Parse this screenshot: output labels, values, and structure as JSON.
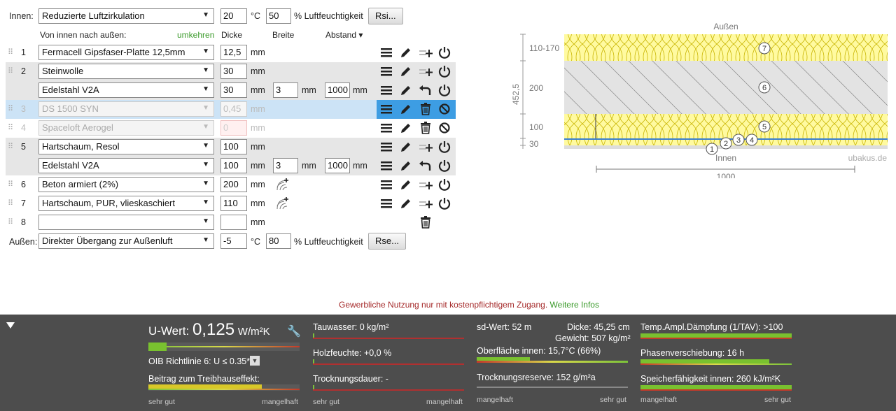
{
  "inside": {
    "label": "Innen:",
    "climate": "Reduzierte Luftzirkulation",
    "temp": "20",
    "temp_unit": "°C",
    "humidity": "50",
    "humidity_label": "% Luftfeuchtigkeit",
    "rsi_button": "Rsi..."
  },
  "headers": {
    "direction": "Von innen nach außen:",
    "reverse": "umkehren",
    "thickness": "Dicke",
    "width": "Breite",
    "distance": "Abstand ▾"
  },
  "layers": [
    {
      "num": "1",
      "material": "Fermacell Gipsfaser-Platte 12,5mm",
      "thickness": "12,5",
      "unit": "mm"
    },
    {
      "num": "2",
      "material": "Steinwolle",
      "thickness": "30",
      "unit": "mm"
    },
    {
      "num": "",
      "material": "Edelstahl V2A",
      "thickness": "30",
      "unit": "mm",
      "width": "3",
      "width_unit": "mm",
      "distance": "1000",
      "distance_unit": "mm"
    },
    {
      "num": "3",
      "material": "DS 1500 SYN",
      "thickness": "0,45",
      "unit": "mm"
    },
    {
      "num": "4",
      "material": "Spaceloft Aerogel",
      "thickness": "0",
      "unit": "mm"
    },
    {
      "num": "5",
      "material": "Hartschaum, Resol",
      "thickness": "100",
      "unit": "mm"
    },
    {
      "num": "",
      "material": "Edelstahl V2A",
      "thickness": "100",
      "unit": "mm",
      "width": "3",
      "width_unit": "mm",
      "distance": "1000",
      "distance_unit": "mm"
    },
    {
      "num": "6",
      "material": "Beton armiert (2%)",
      "thickness": "200",
      "unit": "mm"
    },
    {
      "num": "7",
      "material": "Hartschaum, PUR, vlieskaschiert",
      "thickness": "110",
      "unit": "mm"
    },
    {
      "num": "8",
      "material": "",
      "thickness": "",
      "unit": "mm"
    }
  ],
  "outside": {
    "label": "Außen:",
    "climate": "Direkter Übergang zur Außenluft",
    "temp": "-5",
    "temp_unit": "°C",
    "humidity": "80",
    "humidity_label": "% Luftfeuchtigkeit",
    "rse_button": "Rse..."
  },
  "diagram": {
    "top_label": "Außen",
    "bottom_label": "Innen",
    "watermark": "ubakus.de",
    "dim_total": "452,5",
    "dim_width": "1000",
    "dim_labels": [
      "110-170",
      "200",
      "100",
      "30"
    ],
    "markers": [
      "7",
      "6",
      "5",
      "1",
      "2",
      "3",
      "4"
    ]
  },
  "notice": {
    "text": "Gewerbliche Nutzung nur mit kostenpflichtigem Zugang.",
    "link": "Weitere Infos"
  },
  "results": {
    "u_label": "U-Wert:",
    "u_value": "0,125",
    "u_unit": "W/m²K",
    "u_rating": 0.12,
    "oib": "OIB Richtlinie 6: U ≤ 0.35*",
    "greenhouse": "Beitrag zum Treibhauseffekt:",
    "greenhouse_rating": 0.75,
    "tauwasser": "Tauwasser: 0 kg/m²",
    "holzfeuchte": "Holzfeuchte: +0,0 %",
    "trocknung": "Trocknungsdauer: -",
    "sd": "sd-Wert: 52 m",
    "dicke": "Dicke: 45,25 cm",
    "gewicht": "Gewicht: 507 kg/m²",
    "oberflaeche": "Oberfläche innen: 15,7°C (66%)",
    "oberflaeche_rating": 0.35,
    "reserve": "Trocknungsreserve: 152 g/m²a",
    "tav": "Temp.Ampl.Dämpfung (1/TAV): >100",
    "phase": "Phasenverschiebung: 16 h",
    "phase_rating": 0.85,
    "speicher": "Speicherfähigkeit innen: 260 kJ/m²K",
    "good": "sehr gut",
    "bad": "mangelhaft"
  },
  "colors": {
    "highlight": "#cce3f6",
    "icon_blue": "#3d9de3",
    "insulation": "#fffaa0",
    "concrete": "#e0e0e0",
    "panel": "#4d4d4d"
  }
}
